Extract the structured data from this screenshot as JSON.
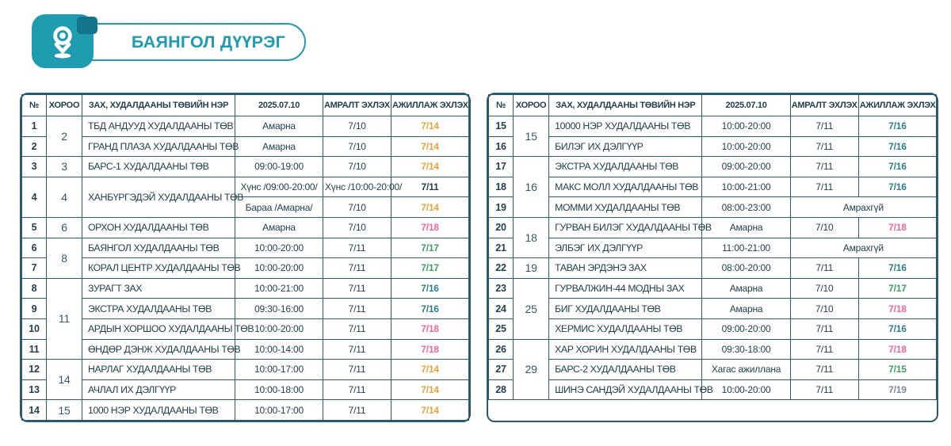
{
  "header": {
    "district": "БАЯНГОЛ ДҮҮРЭГ"
  },
  "colors": {
    "accent": "#1f9cb0",
    "accent_dark": "#13758a",
    "border": "#2b5a6e",
    "dark": "#24404f",
    "orange": "#e5a33c",
    "pink": "#f0679b",
    "green": "#3f9e68",
    "teal": "#2e7d8c",
    "slate": "#8084a6"
  },
  "columns": [
    "№",
    "ХОРОО",
    "ЗАХ, ХУДАЛДААНЫ ТӨВИЙН НЭР",
    "2025.07.10",
    "АМРАЛТ ЭХЛЭХ",
    "АЖИЛЛАЖ ЭХЛЭХ"
  ],
  "tables": [
    {
      "rows": [
        {
          "no": "1",
          "khoroo": "2",
          "khoroo_span": 2,
          "name": "ТБД АНДУУД ХУДАЛДААНЫ ТӨВ",
          "sched": "Амарна",
          "rest": "7/10",
          "work": "7/14",
          "work_color": "orange"
        },
        {
          "no": "2",
          "name": "ГРАНД ПЛАЗА ХУДАЛДААНЫ ТӨВ",
          "sched": "Амарна",
          "rest": "7/10",
          "work": "7/14",
          "work_color": "orange"
        },
        {
          "no": "3",
          "khoroo": "3",
          "name": "БАРС-1 ХУДАЛДААНЫ ТӨВ",
          "sched": "09:00-19:00",
          "rest": "7/10",
          "work": "7/14",
          "work_color": "orange"
        },
        {
          "no": "4",
          "no_span": 2,
          "khoroo": "4",
          "khoroo_span": 2,
          "name": "ХАНБҮРГЭДЭЙ ХУДАЛДААНЫ ТӨВ",
          "name_span": 2,
          "sched": "Хүнс /09:00-20:00/",
          "rest": "Хүнс /10:00-20:00/",
          "work": "7/11",
          "work_color": "dark"
        },
        {
          "sched": "Бараа /Амарна/",
          "rest": "7/10",
          "work": "7/14",
          "work_color": "orange"
        },
        {
          "no": "5",
          "khoroo": "6",
          "name": "ОРХОН ХУДАЛДААНЫ ТӨВ",
          "sched": "Амарна",
          "rest": "7/10",
          "work": "7/18",
          "work_color": "pink"
        },
        {
          "no": "6",
          "khoroo": "8",
          "khoroo_span": 2,
          "name": "БАЯНГОЛ ХУДАЛДААНЫ ТӨВ",
          "sched": "10:00-20:00",
          "rest": "7/11",
          "work": "7/17",
          "work_color": "green"
        },
        {
          "no": "7",
          "name": "КОРАЛ ЦЕНТР ХУДАЛДААНЫ ТӨВ",
          "sched": "10:00-20:00",
          "rest": "7/11",
          "work": "7/17",
          "work_color": "green"
        },
        {
          "no": "8",
          "khoroo": "11",
          "khoroo_span": 4,
          "name": "ЗУРАГТ ЗАХ",
          "sched": "10:00-21:00",
          "rest": "7/11",
          "work": "7/16",
          "work_color": "teal"
        },
        {
          "no": "9",
          "name": "ЭКСТРА ХУДАЛДААНЫ ТӨВ",
          "sched": "09:30-16:00",
          "rest": "7/11",
          "work": "7/16",
          "work_color": "teal"
        },
        {
          "no": "10",
          "name": "АРДЫН ХОРШОО ХУДАЛДААНЫ ТӨВ",
          "sched": "10:00-20:00",
          "rest": "7/11",
          "work": "7/18",
          "work_color": "pink"
        },
        {
          "no": "11",
          "name": "ӨНДӨР ДЭНЖ ХУДАЛДААНЫ ТӨВ",
          "sched": "10:00-14:00",
          "rest": "7/11",
          "work": "7/18",
          "work_color": "pink"
        },
        {
          "no": "12",
          "khoroo": "14",
          "khoroo_span": 2,
          "name": "НАРЛАГ ХУДАЛДААНЫ ТӨВ",
          "sched": "10:00-17:00",
          "rest": "7/11",
          "work": "7/14",
          "work_color": "orange"
        },
        {
          "no": "13",
          "name": "АЧЛАЛ ИХ ДЭЛГҮҮР",
          "sched": "10:00-18:00",
          "rest": "7/11",
          "work": "7/14",
          "work_color": "orange"
        },
        {
          "no": "14",
          "khoroo": "15",
          "name": "1000 НЭР ХУДАЛДААНЫ ТӨВ",
          "sched": "10:00-17:00",
          "rest": "7/11",
          "work": "7/14",
          "work_color": "orange"
        }
      ]
    },
    {
      "rows": [
        {
          "no": "15",
          "khoroo": "15",
          "khoroo_span": 2,
          "name": "10000 НЭР ХУДАЛДААНЫ ТӨВ",
          "sched": "10:00-20:00",
          "rest": "7/11",
          "work": "7/16",
          "work_color": "teal"
        },
        {
          "no": "16",
          "name": "БИЛЭГ ИХ ДЭЛГҮҮР",
          "sched": "10:00-20:00",
          "rest": "7/11",
          "work": "7/16",
          "work_color": "teal"
        },
        {
          "no": "17",
          "khoroo": "16",
          "khoroo_span": 3,
          "name": "ЭКСТРА ХУДАЛДААНЫ ТӨВ",
          "sched": "09:00-20:00",
          "rest": "7/11",
          "work": "7/16",
          "work_color": "teal"
        },
        {
          "no": "18",
          "name": "МАКС МОЛЛ ХУДАЛДААНЫ ТӨВ",
          "sched": "10:00-21:00",
          "rest": "7/11",
          "work": "7/16",
          "work_color": "teal"
        },
        {
          "no": "19",
          "name": "МОММИ ХУДАЛДААНЫ ТӨВ",
          "sched": "08:00-23:00",
          "rest_work": "Амрахгүй"
        },
        {
          "no": "20",
          "khoroo": "18",
          "khoroo_span": 2,
          "name": "ГУРВАН БИЛЭГ ХУДАЛДААНЫ ТӨВ",
          "sched": "Амарна",
          "rest": "7/10",
          "work": "7/18",
          "work_color": "pink"
        },
        {
          "no": "21",
          "name": "ЭЛБЭГ ИХ ДЭЛГҮҮР",
          "sched": "11:00-21:00",
          "rest_work": "Амрахгүй"
        },
        {
          "no": "22",
          "khoroo": "19",
          "name": "ТАВАН ЭРДЭНЭ ЗАХ",
          "sched": "08:00-20:00",
          "rest": "7/11",
          "work": "7/16",
          "work_color": "teal"
        },
        {
          "no": "23",
          "khoroo": "25",
          "khoroo_span": 3,
          "name": "ГУРВАЛЖИН-44 МОДНЫ ЗАХ",
          "sched": "Амарна",
          "rest": "7/10",
          "work": "7/17",
          "work_color": "green"
        },
        {
          "no": "24",
          "name": "БИГ ХУДАЛДААНЫ ТӨВ",
          "sched": "Амарна",
          "rest": "7/10",
          "work": "7/18",
          "work_color": "pink"
        },
        {
          "no": "25",
          "name": "ХЕРМИС ХУДАЛДААНЫ ТӨВ",
          "sched": "09:00-20:00",
          "rest": "7/11",
          "work": "7/16",
          "work_color": "teal"
        },
        {
          "no": "26",
          "khoroo": "29",
          "khoroo_span": 3,
          "name": "ХАР ХОРИН ХУДАЛДААНЫ ТӨВ",
          "sched": "09:30-18:00",
          "rest": "7/11",
          "work": "7/18",
          "work_color": "pink"
        },
        {
          "no": "27",
          "name": "БАРС-2 ХУДАЛДААНЫ ТӨВ",
          "sched": "Хагас ажиллана",
          "rest": "7/11",
          "work": "7/15",
          "work_color": "green"
        },
        {
          "no": "28",
          "name": "ШИНЭ САНДЭЙ ХУДАЛДААНЫ ТӨВ",
          "sched": "10:00-20:00",
          "rest": "7/11",
          "work": "7/19",
          "work_color": "slate"
        }
      ]
    }
  ]
}
